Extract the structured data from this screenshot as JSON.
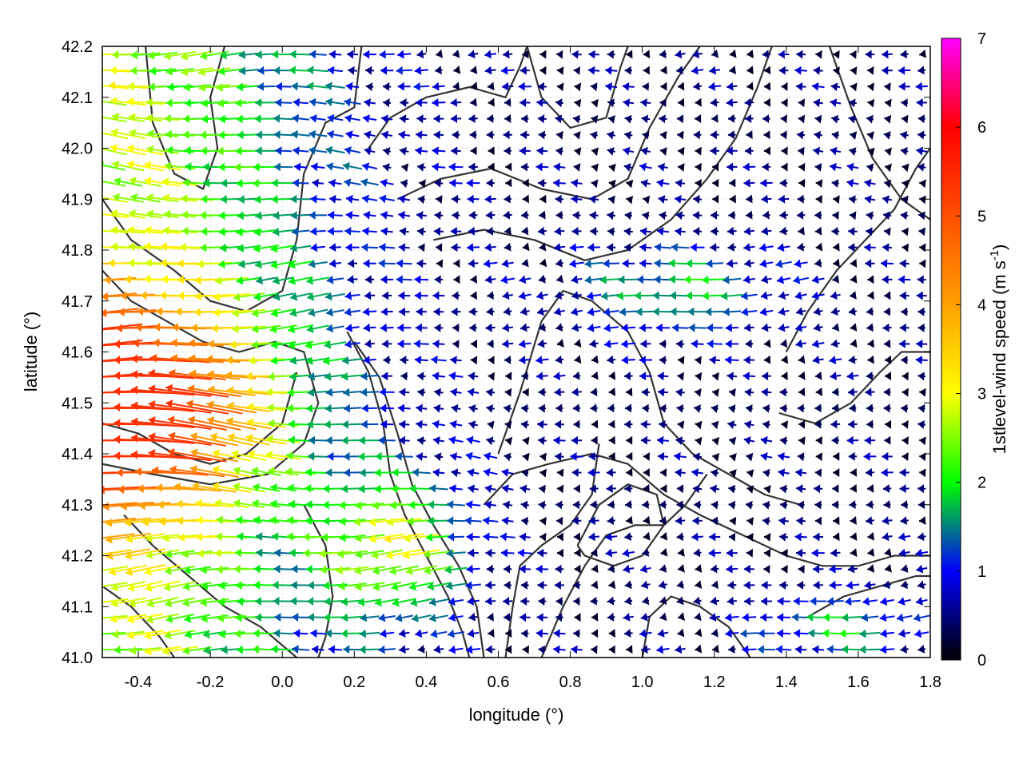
{
  "chart_data": {
    "type": "vector-field",
    "xlabel": "longitude (°)",
    "ylabel": "latitude (°)",
    "xlim": [
      -0.5,
      1.8
    ],
    "ylim": [
      41.0,
      42.2
    ],
    "xticks": [
      "-0.4",
      "-0.2",
      "0.0",
      "0.2",
      "0.4",
      "0.6",
      "0.8",
      "1.0",
      "1.2",
      "1.4",
      "1.6",
      "1.8"
    ],
    "xtick_values": [
      -0.4,
      -0.2,
      0.0,
      0.2,
      0.4,
      0.6,
      0.8,
      1.0,
      1.2,
      1.4,
      1.6,
      1.8
    ],
    "yticks": [
      "41.0",
      "41.1",
      "41.2",
      "41.3",
      "41.4",
      "41.5",
      "41.6",
      "41.7",
      "41.8",
      "41.9",
      "42.0",
      "42.1",
      "42.2"
    ],
    "ytick_values": [
      41.0,
      41.1,
      41.2,
      41.3,
      41.4,
      41.5,
      41.6,
      41.7,
      41.8,
      41.9,
      42.0,
      42.1,
      42.2
    ],
    "grid": true,
    "colorbar": {
      "label_main": "1stlevel-wind speed (m s",
      "label_sup": "-1",
      "label_end": ")",
      "min": 0,
      "max": 7,
      "ticks": [
        "0",
        "1",
        "2",
        "3",
        "4",
        "5",
        "6",
        "7"
      ],
      "tick_values": [
        0,
        1,
        2,
        3,
        4,
        5,
        6,
        7
      ],
      "stops": [
        {
          "v": 0,
          "color": "#000000"
        },
        {
          "v": 1,
          "color": "#0000ff"
        },
        {
          "v": 2,
          "color": "#00ff00"
        },
        {
          "v": 3,
          "color": "#ffff00"
        },
        {
          "v": 4,
          "color": "#ffa000"
        },
        {
          "v": 5,
          "color": "#ff5000"
        },
        {
          "v": 6,
          "color": "#ff0000"
        },
        {
          "v": 7,
          "color": "#ff00ff"
        }
      ]
    },
    "contour_color": "#333333",
    "contours": [
      [
        [
          -0.38,
          42.2
        ],
        [
          -0.36,
          42.05
        ],
        [
          -0.3,
          41.95
        ],
        [
          -0.22,
          41.92
        ],
        [
          -0.18,
          42.0
        ],
        [
          -0.2,
          42.1
        ],
        [
          -0.16,
          42.2
        ]
      ],
      [
        [
          -0.5,
          41.9
        ],
        [
          -0.42,
          41.82
        ],
        [
          -0.3,
          41.76
        ],
        [
          -0.2,
          41.7
        ],
        [
          -0.1,
          41.68
        ],
        [
          0.0,
          41.72
        ],
        [
          0.04,
          41.82
        ],
        [
          0.06,
          41.95
        ],
        [
          0.12,
          42.05
        ],
        [
          0.2,
          42.08
        ],
        [
          0.22,
          42.2
        ]
      ],
      [
        [
          -0.5,
          41.76
        ],
        [
          -0.42,
          41.7
        ],
        [
          -0.32,
          41.66
        ],
        [
          -0.22,
          41.62
        ],
        [
          -0.12,
          41.6
        ],
        [
          -0.02,
          41.62
        ],
        [
          0.06,
          41.6
        ],
        [
          0.1,
          41.5
        ],
        [
          0.06,
          41.42
        ],
        [
          -0.04,
          41.36
        ],
        [
          -0.2,
          41.34
        ],
        [
          -0.36,
          41.36
        ],
        [
          -0.5,
          41.38
        ]
      ],
      [
        [
          -0.5,
          41.46
        ],
        [
          -0.4,
          41.44
        ],
        [
          -0.3,
          41.4
        ],
        [
          -0.2,
          41.38
        ],
        [
          -0.1,
          41.4
        ],
        [
          0.0,
          41.46
        ],
        [
          0.04,
          41.56
        ]
      ],
      [
        [
          0.18,
          41.64
        ],
        [
          0.24,
          41.56
        ],
        [
          0.28,
          41.46
        ],
        [
          0.3,
          41.36
        ],
        [
          0.34,
          41.28
        ],
        [
          0.4,
          41.2
        ],
        [
          0.46,
          41.12
        ],
        [
          0.5,
          41.05
        ],
        [
          0.52,
          41.0
        ]
      ],
      [
        [
          0.2,
          41.62
        ],
        [
          0.27,
          41.55
        ],
        [
          0.32,
          41.44
        ],
        [
          0.36,
          41.34
        ],
        [
          0.42,
          41.26
        ],
        [
          0.49,
          41.18
        ],
        [
          0.54,
          41.1
        ],
        [
          0.56,
          41.0
        ]
      ],
      [
        [
          0.32,
          41.9
        ],
        [
          0.44,
          41.94
        ],
        [
          0.58,
          41.96
        ],
        [
          0.72,
          41.92
        ],
        [
          0.86,
          41.9
        ],
        [
          0.96,
          41.94
        ],
        [
          1.02,
          42.04
        ],
        [
          1.1,
          42.14
        ],
        [
          1.16,
          42.2
        ]
      ],
      [
        [
          0.42,
          41.82
        ],
        [
          0.56,
          41.84
        ],
        [
          0.7,
          41.82
        ],
        [
          0.84,
          41.78
        ],
        [
          0.96,
          41.8
        ],
        [
          1.08,
          41.86
        ],
        [
          1.18,
          41.94
        ],
        [
          1.26,
          42.02
        ],
        [
          1.32,
          42.12
        ],
        [
          1.36,
          42.2
        ]
      ],
      [
        [
          0.6,
          41.4
        ],
        [
          0.66,
          41.52
        ],
        [
          0.72,
          41.66
        ],
        [
          0.78,
          41.72
        ],
        [
          0.86,
          41.7
        ],
        [
          0.96,
          41.64
        ],
        [
          1.02,
          41.56
        ],
        [
          1.06,
          41.46
        ],
        [
          1.14,
          41.4
        ],
        [
          1.24,
          41.36
        ],
        [
          1.34,
          41.32
        ],
        [
          1.44,
          41.3
        ]
      ],
      [
        [
          0.56,
          41.3
        ],
        [
          0.64,
          41.36
        ],
        [
          0.74,
          41.38
        ],
        [
          0.86,
          41.4
        ],
        [
          0.96,
          41.38
        ],
        [
          1.06,
          41.32
        ],
        [
          1.16,
          41.28
        ],
        [
          1.28,
          41.24
        ],
        [
          1.4,
          41.2
        ],
        [
          1.5,
          41.18
        ],
        [
          1.6,
          41.18
        ],
        [
          1.7,
          41.2
        ],
        [
          1.8,
          41.2
        ]
      ],
      [
        [
          0.72,
          41.0
        ],
        [
          0.78,
          41.1
        ],
        [
          0.84,
          41.18
        ],
        [
          0.9,
          41.24
        ],
        [
          0.98,
          41.26
        ],
        [
          1.06,
          41.26
        ],
        [
          1.12,
          41.3
        ],
        [
          1.18,
          41.36
        ]
      ],
      [
        [
          0.62,
          41.0
        ],
        [
          0.64,
          41.1
        ],
        [
          0.66,
          41.18
        ],
        [
          0.72,
          41.22
        ],
        [
          0.8,
          41.26
        ],
        [
          0.86,
          41.32
        ],
        [
          0.88,
          41.42
        ]
      ],
      [
        [
          0.82,
          41.22
        ],
        [
          0.88,
          41.3
        ],
        [
          0.96,
          41.34
        ],
        [
          1.04,
          41.32
        ],
        [
          1.06,
          41.26
        ],
        [
          1.0,
          41.2
        ],
        [
          0.92,
          41.18
        ],
        [
          0.84,
          41.2
        ],
        [
          0.82,
          41.22
        ]
      ],
      [
        [
          1.4,
          41.6
        ],
        [
          1.46,
          41.68
        ],
        [
          1.54,
          41.76
        ],
        [
          1.62,
          41.82
        ],
        [
          1.7,
          41.88
        ],
        [
          1.76,
          41.96
        ],
        [
          1.8,
          42.0
        ]
      ],
      [
        [
          1.38,
          41.48
        ],
        [
          1.48,
          41.46
        ],
        [
          1.58,
          41.5
        ],
        [
          1.66,
          41.56
        ],
        [
          1.72,
          41.6
        ],
        [
          1.8,
          41.6
        ]
      ],
      [
        [
          1.52,
          42.2
        ],
        [
          1.58,
          42.08
        ],
        [
          1.64,
          41.98
        ],
        [
          1.72,
          41.9
        ],
        [
          1.8,
          41.86
        ]
      ],
      [
        [
          0.68,
          42.2
        ],
        [
          0.72,
          42.1
        ],
        [
          0.8,
          42.04
        ],
        [
          0.9,
          42.06
        ],
        [
          0.94,
          42.16
        ],
        [
          0.96,
          42.2
        ]
      ],
      [
        [
          -0.44,
          41.28
        ],
        [
          -0.36,
          41.22
        ],
        [
          -0.26,
          41.16
        ],
        [
          -0.16,
          41.1
        ],
        [
          -0.06,
          41.06
        ],
        [
          0.04,
          41.0
        ]
      ],
      [
        [
          0.06,
          41.3
        ],
        [
          0.12,
          41.22
        ],
        [
          0.14,
          41.12
        ],
        [
          0.12,
          41.04
        ],
        [
          0.1,
          41.0
        ]
      ],
      [
        [
          -0.5,
          41.14
        ],
        [
          -0.42,
          41.1
        ],
        [
          -0.34,
          41.04
        ],
        [
          -0.3,
          41.0
        ]
      ],
      [
        [
          1.46,
          41.08
        ],
        [
          1.56,
          41.12
        ],
        [
          1.66,
          41.14
        ],
        [
          1.76,
          41.16
        ],
        [
          1.8,
          41.16
        ]
      ],
      [
        [
          1.0,
          41.0
        ],
        [
          1.02,
          41.08
        ],
        [
          1.08,
          41.12
        ],
        [
          1.16,
          41.1
        ],
        [
          1.24,
          41.06
        ],
        [
          1.3,
          41.0
        ]
      ],
      [
        [
          0.24,
          42.0
        ],
        [
          0.3,
          42.06
        ],
        [
          0.4,
          42.1
        ],
        [
          0.52,
          42.12
        ],
        [
          0.62,
          42.1
        ],
        [
          0.66,
          42.16
        ],
        [
          0.68,
          42.2
        ]
      ]
    ]
  }
}
